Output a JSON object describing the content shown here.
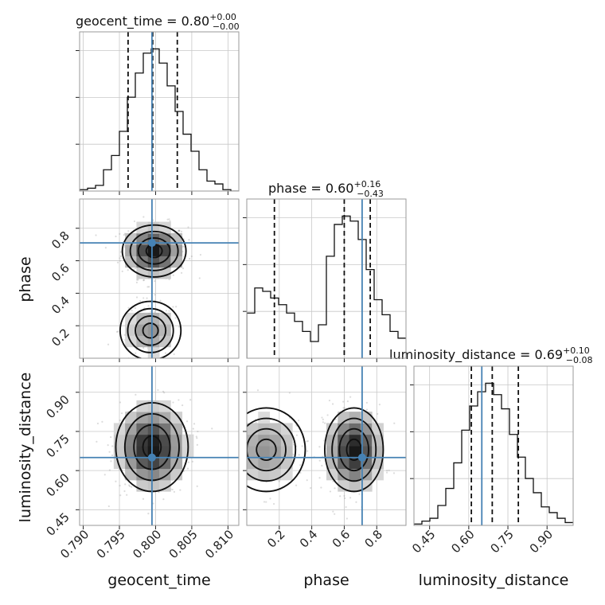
{
  "chart_data": {
    "type": "corner",
    "parameters": [
      "geocent_time",
      "phase",
      "luminosity_distance"
    ],
    "truths": {
      "geocent_time": 0.7995,
      "phase": 0.71,
      "luminosity_distance": 0.65
    },
    "titles": {
      "geocent_time": {
        "prefix": "geocent_time = 0.80",
        "plus": "+0.00",
        "minus": "−0.00"
      },
      "phase": {
        "prefix": "phase = 0.60",
        "plus": "+0.16",
        "minus": "−0.43"
      },
      "luminosity_distance": {
        "prefix": "luminosity_distance = 0.69",
        "plus": "+0.10",
        "minus": "−0.08"
      }
    },
    "axis_labels": {
      "geocent_time": "geocent_time",
      "phase": "phase",
      "luminosity_distance": "luminosity_distance"
    },
    "ranges": {
      "geocent_time": [
        0.7895,
        0.8115
      ],
      "phase": [
        0.0,
        0.98
      ],
      "luminosity_distance": [
        0.39,
        1.0
      ]
    },
    "ticks": {
      "geocent_time": [
        "0.790",
        "0.795",
        "0.800",
        "0.805",
        "0.810"
      ],
      "phase": [
        "0.2",
        "0.4",
        "0.6",
        "0.8"
      ],
      "luminosity_distance": [
        "0.45",
        "0.60",
        "0.75",
        "0.90"
      ]
    },
    "quantiles": {
      "geocent_time": [
        0.7962,
        0.7996,
        0.803
      ],
      "phase": [
        0.17,
        0.6,
        0.76
      ],
      "luminosity_distance": [
        0.61,
        0.69,
        0.79
      ]
    },
    "histograms": {
      "geocent_time": {
        "edges": [
          0.7895,
          0.7906,
          0.7917,
          0.7928,
          0.7939,
          0.795,
          0.7961,
          0.7972,
          0.7983,
          0.7994,
          0.8005,
          0.8016,
          0.8027,
          0.8038,
          0.8049,
          0.806,
          0.8071,
          0.8082,
          0.8093,
          0.8104,
          0.8115
        ],
        "counts": [
          1,
          2,
          4,
          15,
          25,
          42,
          66,
          83,
          97,
          100,
          90,
          74,
          56,
          40,
          28,
          15,
          7,
          5,
          1,
          0
        ]
      },
      "phase": {
        "edges": [
          0.0,
          0.049,
          0.098,
          0.147,
          0.196,
          0.245,
          0.294,
          0.343,
          0.392,
          0.441,
          0.49,
          0.539,
          0.588,
          0.637,
          0.686,
          0.735,
          0.784,
          0.833,
          0.882,
          0.931,
          0.98
        ],
        "counts": [
          27,
          42,
          40,
          36,
          32,
          27,
          22,
          16,
          10,
          20,
          61,
          80,
          85,
          82,
          71,
          53,
          35,
          26,
          16,
          12
        ]
      },
      "luminosity_distance": {
        "edges": [
          0.39,
          0.4205,
          0.451,
          0.4815,
          0.512,
          0.5425,
          0.573,
          0.6035,
          0.634,
          0.6645,
          0.695,
          0.7255,
          0.756,
          0.7865,
          0.817,
          0.8475,
          0.878,
          0.9085,
          0.939,
          0.9695,
          1.0
        ],
        "counts": [
          1,
          3,
          5,
          14,
          26,
          44,
          67,
          84,
          94,
          100,
          92,
          82,
          64,
          48,
          33,
          23,
          13,
          9,
          5,
          2
        ]
      }
    },
    "joint": {
      "phase_vs_geocent_time": {
        "modes": [
          {
            "x": 0.7998,
            "y": 0.66,
            "sx": 0.0022,
            "sy": 0.08,
            "w": 0.7
          },
          {
            "x": 0.7993,
            "y": 0.17,
            "sx": 0.0021,
            "sy": 0.09,
            "w": 0.3
          }
        ]
      },
      "luminosity_distance_vs_geocent_time": {
        "modes": [
          {
            "x": 0.7995,
            "y": 0.69,
            "sx": 0.0025,
            "sy": 0.085,
            "w": 1.0
          }
        ]
      },
      "luminosity_distance_vs_phase": {
        "modes": [
          {
            "x": 0.66,
            "y": 0.68,
            "sx": 0.09,
            "sy": 0.08,
            "w": 0.7
          },
          {
            "x": 0.12,
            "y": 0.68,
            "sx": 0.12,
            "sy": 0.08,
            "w": 0.3
          }
        ]
      }
    }
  }
}
